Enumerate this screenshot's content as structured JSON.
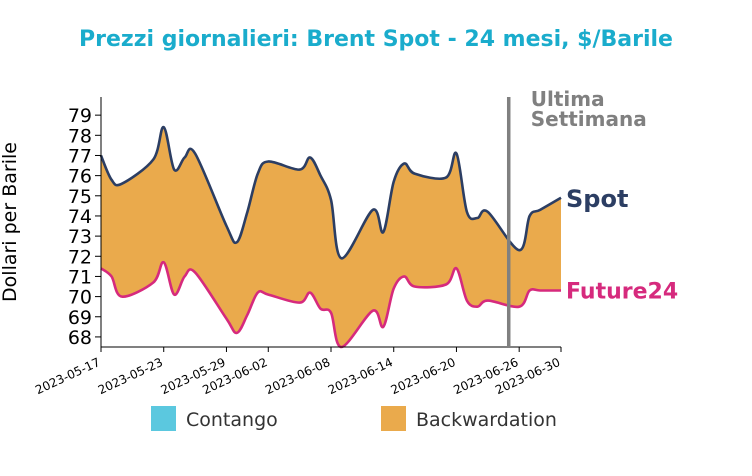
{
  "chart_data": {
    "type": "area",
    "title": "Prezzi giornalieri: Brent Spot - 24 mesi, $/Barile",
    "xlabel": "",
    "ylabel": "Dollari per Barile",
    "xlim": [
      "2023-05-17",
      "2023-06-30"
    ],
    "ylim": [
      67.5,
      79.9
    ],
    "yticks": [
      68,
      69,
      70,
      71,
      72,
      73,
      74,
      75,
      76,
      77,
      78,
      79
    ],
    "xticks": [
      "2023-05-17",
      "2023-05-23",
      "2023-05-29",
      "2023-06-02",
      "2023-06-08",
      "2023-06-14",
      "2023-06-20",
      "2023-06-26",
      "2023-06-30"
    ],
    "grid": false,
    "vline": {
      "x": "2023-06-25",
      "label_line1": "Ultima",
      "label_line2": "Settimana",
      "color": "#808080"
    },
    "series": [
      {
        "name": "Spot",
        "color": "#2c3e63",
        "points": [
          [
            "2023-05-17",
            77.0
          ],
          [
            "2023-05-18",
            75.8
          ],
          [
            "2023-05-19",
            75.6
          ],
          [
            "2023-05-22",
            76.8
          ],
          [
            "2023-05-23",
            78.4
          ],
          [
            "2023-05-24",
            76.3
          ],
          [
            "2023-05-25",
            76.9
          ],
          [
            "2023-05-26",
            77.1
          ],
          [
            "2023-05-29",
            73.5
          ],
          [
            "2023-05-30",
            72.7
          ],
          [
            "2023-05-31",
            74.2
          ],
          [
            "2023-06-01",
            76.1
          ],
          [
            "2023-06-02",
            76.7
          ],
          [
            "2023-06-05",
            76.3
          ],
          [
            "2023-06-06",
            76.9
          ],
          [
            "2023-06-07",
            76.0
          ],
          [
            "2023-06-08",
            74.8
          ],
          [
            "2023-06-09",
            71.9
          ],
          [
            "2023-06-12",
            74.3
          ],
          [
            "2023-06-13",
            73.2
          ],
          [
            "2023-06-14",
            75.7
          ],
          [
            "2023-06-15",
            76.6
          ],
          [
            "2023-06-16",
            76.1
          ],
          [
            "2023-06-19",
            75.9
          ],
          [
            "2023-06-20",
            77.1
          ],
          [
            "2023-06-21",
            74.2
          ],
          [
            "2023-06-22",
            73.9
          ],
          [
            "2023-06-23",
            74.2
          ],
          [
            "2023-06-26",
            72.3
          ],
          [
            "2023-06-27",
            74.0
          ],
          [
            "2023-06-28",
            74.3
          ],
          [
            "2023-06-30",
            74.9
          ]
        ]
      },
      {
        "name": "Future24",
        "color": "#d62a7d",
        "points": [
          [
            "2023-05-17",
            71.4
          ],
          [
            "2023-05-18",
            71.0
          ],
          [
            "2023-05-19",
            70.0
          ],
          [
            "2023-05-22",
            70.7
          ],
          [
            "2023-05-23",
            71.7
          ],
          [
            "2023-05-24",
            70.1
          ],
          [
            "2023-05-25",
            71.0
          ],
          [
            "2023-05-26",
            71.2
          ],
          [
            "2023-05-29",
            68.9
          ],
          [
            "2023-05-30",
            68.2
          ],
          [
            "2023-05-31",
            69.1
          ],
          [
            "2023-06-01",
            70.2
          ],
          [
            "2023-06-02",
            70.1
          ],
          [
            "2023-06-05",
            69.7
          ],
          [
            "2023-06-06",
            70.2
          ],
          [
            "2023-06-07",
            69.4
          ],
          [
            "2023-06-08",
            69.2
          ],
          [
            "2023-06-09",
            67.5
          ],
          [
            "2023-06-12",
            69.3
          ],
          [
            "2023-06-13",
            68.5
          ],
          [
            "2023-06-14",
            70.4
          ],
          [
            "2023-06-15",
            71.0
          ],
          [
            "2023-06-16",
            70.5
          ],
          [
            "2023-06-19",
            70.6
          ],
          [
            "2023-06-20",
            71.4
          ],
          [
            "2023-06-21",
            69.8
          ],
          [
            "2023-06-22",
            69.5
          ],
          [
            "2023-06-23",
            69.8
          ],
          [
            "2023-06-26",
            69.5
          ],
          [
            "2023-06-27",
            70.3
          ],
          [
            "2023-06-28",
            70.3
          ],
          [
            "2023-06-30",
            70.3
          ]
        ]
      }
    ],
    "legend": {
      "placement": "bottom",
      "items": [
        {
          "label": "Contango",
          "color": "#5bc8df"
        },
        {
          "label": "Backwardation",
          "color": "#eaaa4c"
        }
      ]
    },
    "colors": {
      "title": "#1aaccc",
      "fill_backwardation": "#eaaa4c",
      "fill_contango": "#5bc8df"
    }
  }
}
